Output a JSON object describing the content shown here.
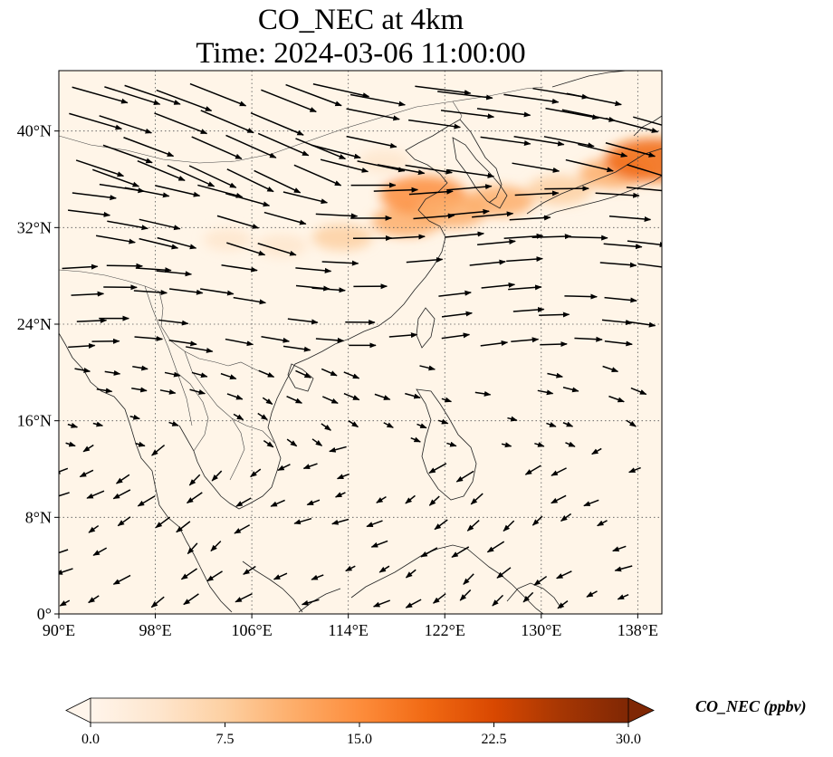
{
  "title": {
    "line1": "CO_NEC at 4km",
    "line2": "Time: 2024-03-06 11:00:00"
  },
  "map": {
    "lon_range": [
      90,
      140
    ],
    "lat_range": [
      0,
      45
    ],
    "lon_ticks": [
      {
        "value": 90,
        "label": "90°E"
      },
      {
        "value": 98,
        "label": "98°E"
      },
      {
        "value": 106,
        "label": "106°E"
      },
      {
        "value": 114,
        "label": "114°E"
      },
      {
        "value": 122,
        "label": "122°E"
      },
      {
        "value": 130,
        "label": "130°E"
      },
      {
        "value": 138,
        "label": "138°E"
      }
    ],
    "lat_ticks": [
      {
        "value": 0,
        "label": "0°"
      },
      {
        "value": 8,
        "label": "8°N"
      },
      {
        "value": 16,
        "label": "16°N"
      },
      {
        "value": 24,
        "label": "24°N"
      },
      {
        "value": 32,
        "label": "32°N"
      },
      {
        "value": 40,
        "label": "40°N"
      }
    ],
    "gridlines": true,
    "background_color": "#fff5e8",
    "plume_regions": [
      {
        "lon": 113.5,
        "lat": 31.2,
        "value": 7
      },
      {
        "lon": 118.8,
        "lat": 32.5,
        "value": 10
      },
      {
        "lon": 120.2,
        "lat": 34.7,
        "value": 16
      },
      {
        "lon": 122.5,
        "lat": 33.3,
        "value": 11
      },
      {
        "lon": 126.5,
        "lat": 34.2,
        "value": 10
      },
      {
        "lon": 131.5,
        "lat": 35.1,
        "value": 9
      },
      {
        "lon": 136.0,
        "lat": 36.5,
        "value": 10
      },
      {
        "lon": 139.3,
        "lat": 37.6,
        "value": 20
      },
      {
        "lon": 108.5,
        "lat": 30.5,
        "value": 4
      },
      {
        "lon": 104.0,
        "lat": 31.0,
        "value": 3
      },
      {
        "lon": 117.0,
        "lat": 37.5,
        "value": 4
      }
    ]
  },
  "colorbar": {
    "label": "CO_NEC (ppbv)",
    "min": 0.0,
    "max": 30.0,
    "tick_labels": [
      "0.0",
      "7.5",
      "15.0",
      "22.5",
      "30.0"
    ],
    "colors": [
      "#fff5eb",
      "#fee6ce",
      "#fdd0a2",
      "#fdae6b",
      "#fd8d3c",
      "#f16913",
      "#d94801",
      "#a63603",
      "#7f2704"
    ],
    "extend": "both"
  }
}
